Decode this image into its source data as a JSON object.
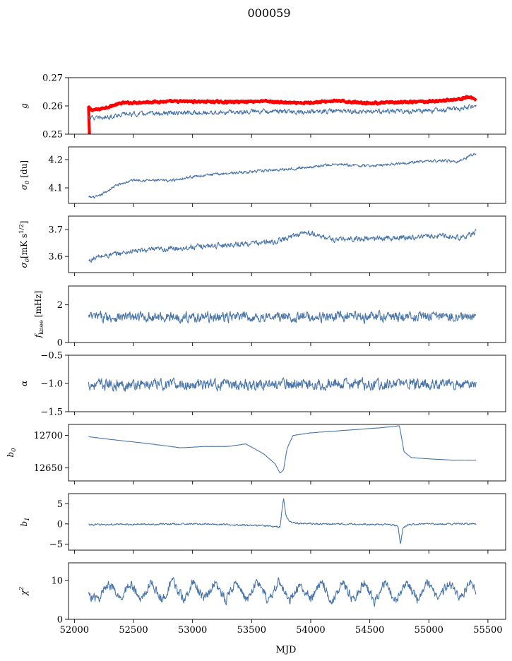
{
  "figure": {
    "title": "000059",
    "xlabel": "MJD"
  },
  "chart_data": {
    "type": "line",
    "xlim": [
      51950,
      55650
    ],
    "xticks": [
      52000,
      52500,
      53000,
      53500,
      54000,
      54500,
      55000,
      55500
    ],
    "x_range": [
      52120,
      55400
    ],
    "panels": [
      {
        "id": "g",
        "ylabel": "g",
        "ylim": [
          0.25,
          0.27
        ],
        "yticks": [
          0.25,
          0.26,
          0.27
        ],
        "ytick_labels": [
          "0.25",
          "0.26",
          "0.27"
        ],
        "series": [
          {
            "color": "#ff0000",
            "width": 4.2,
            "x": [
              52120,
              52140,
              52200,
              52400,
              52700,
              53000,
              53300,
              53600,
              53900,
              54200,
              54500,
              54800,
              55100,
              55250,
              55350,
              55400
            ],
            "values": [
              0.2595,
              0.2586,
              0.2587,
              0.261,
              0.2615,
              0.2616,
              0.2614,
              0.2617,
              0.2609,
              0.2618,
              0.261,
              0.2613,
              0.2618,
              0.2624,
              0.2632,
              0.2621
            ],
            "noise": 0.0003
          },
          {
            "color": "#4a75a8",
            "width": 1.1,
            "x": [
              52120,
              52200,
              52400,
              52700,
              53000,
              53300,
              53600,
              53900,
              54200,
              54500,
              54800,
              55100,
              55300,
              55400
            ],
            "values": [
              0.2562,
              0.2555,
              0.257,
              0.2573,
              0.2575,
              0.2577,
              0.2583,
              0.2578,
              0.2582,
              0.2579,
              0.2581,
              0.2584,
              0.2593,
              0.26
            ],
            "noise": 0.0007
          }
        ]
      },
      {
        "id": "sigma0_du",
        "ylabel": "σ0 [du]",
        "ylim": [
          4.045,
          4.245
        ],
        "yticks": [
          4.1,
          4.2
        ],
        "ytick_labels": [
          "4.1",
          "4.2"
        ],
        "series": [
          {
            "color": "#4a75a8",
            "width": 1.1,
            "x": [
              52120,
              52200,
              52350,
              52500,
              52800,
              53000,
              53300,
              53600,
              53900,
              54200,
              54500,
              54800,
              55100,
              55250,
              55400
            ],
            "values": [
              4.066,
              4.068,
              4.108,
              4.128,
              4.125,
              4.14,
              4.152,
              4.16,
              4.17,
              4.183,
              4.177,
              4.189,
              4.197,
              4.193,
              4.224
            ],
            "noise": 0.004
          }
        ]
      },
      {
        "id": "sigma0_mk",
        "ylabel": "σ0[mK s^1/2]",
        "ylim": [
          3.54,
          3.75
        ],
        "yticks": [
          3.6,
          3.7
        ],
        "ytick_labels": [
          "3.6",
          "3.7"
        ],
        "series": [
          {
            "color": "#4a75a8",
            "width": 1.1,
            "x": [
              52120,
              52200,
              52500,
              52800,
              53100,
              53400,
              53700,
              53950,
              54200,
              54500,
              54800,
              55100,
              55300,
              55400
            ],
            "values": [
              3.583,
              3.598,
              3.62,
              3.628,
              3.638,
              3.646,
              3.654,
              3.69,
              3.662,
              3.667,
              3.67,
              3.678,
              3.67,
              3.692
            ],
            "noise": 0.008
          }
        ]
      },
      {
        "id": "fknee",
        "ylabel": "fknee [mHz]",
        "ylim": [
          0,
          3
        ],
        "yticks": [
          0,
          2
        ],
        "ytick_labels": [
          "0",
          "2"
        ],
        "series": [
          {
            "color": "#4a75a8",
            "width": 1.1,
            "x": [
              52120,
              53000,
              54000,
              55000,
              55400
            ],
            "values": [
              1.35,
              1.35,
              1.35,
              1.38,
              1.35
            ],
            "noise": 0.22
          }
        ]
      },
      {
        "id": "alpha",
        "ylabel": "α",
        "ylim": [
          -1.5,
          -0.5
        ],
        "yticks": [
          -1.5,
          -1.0,
          -0.5
        ],
        "ytick_labels": [
          "−1.5",
          "−1.0",
          "−0.5"
        ],
        "series": [
          {
            "color": "#4a75a8",
            "width": 1.1,
            "x": [
              52120,
              53000,
              54000,
              55000,
              55400
            ],
            "values": [
              -1.02,
              -1.02,
              -1.01,
              -1.01,
              -1.02
            ],
            "noise": 0.08
          }
        ]
      },
      {
        "id": "b0",
        "ylabel": "b0",
        "ylim": [
          12630,
          12717
        ],
        "yticks": [
          12650,
          12700
        ],
        "ytick_labels": [
          "12650",
          "12700"
        ],
        "series": [
          {
            "color": "#4a75a8",
            "width": 1.1,
            "x": [
              52120,
              52300,
              52600,
              52900,
              53100,
              53300,
              53450,
              53500,
              53600,
              53700,
              53740,
              53770,
              53800,
              53850,
              54000,
              54300,
              54600,
              54750,
              54760,
              54790,
              54850,
              55000,
              55200,
              55400
            ],
            "values": [
              12698,
              12694,
              12688,
              12681,
              12683,
              12683,
              12687,
              12682,
              12672,
              12656,
              12642,
              12647,
              12680,
              12700,
              12704,
              12708,
              12712,
              12715,
              12706,
              12675,
              12666,
              12664,
              12662,
              12662
            ],
            "noise": 0.15
          }
        ]
      },
      {
        "id": "b1",
        "ylabel": "b1",
        "ylim": [
          -6.5,
          7.5
        ],
        "yticks": [
          -5,
          0,
          5
        ],
        "ytick_labels": [
          "−5",
          "0",
          "5"
        ],
        "series": [
          {
            "color": "#4a75a8",
            "width": 1.1,
            "x": [
              52120,
              53000,
              53500,
              53700,
              53740,
              53770,
              53790,
              53820,
              53900,
              54200,
              54700,
              54740,
              54760,
              54780,
              54830,
              55000,
              55400
            ],
            "values": [
              -0.2,
              0,
              -0.3,
              -0.6,
              -0.8,
              6.5,
              2.0,
              0.5,
              0.1,
              0,
              -0.2,
              -0.6,
              -5.3,
              -1.0,
              -0.2,
              0,
              0
            ],
            "noise": 0.18
          }
        ]
      },
      {
        "id": "chi2",
        "ylabel": "χ2",
        "ylim": [
          0,
          14.5
        ],
        "yticks": [
          0,
          10
        ],
        "ytick_labels": [
          "0",
          "10"
        ],
        "series": [
          {
            "color": "#4a75a8",
            "width": 1.1,
            "x": [
              52120,
              52200,
              52290,
              52380,
              52470,
              52560,
              52650,
              52740,
              52830,
              52920,
              53010,
              53100,
              53190,
              53280,
              53370,
              53460,
              53550,
              53640,
              53730,
              53820,
              53910,
              54000,
              54090,
              54180,
              54270,
              54360,
              54450,
              54540,
              54630,
              54720,
              54810,
              54900,
              54990,
              55080,
              55170,
              55260,
              55350,
              55400
            ],
            "values": [
              6.2,
              5.0,
              9.6,
              5.0,
              9.4,
              4.8,
              9.6,
              4.8,
              9.8,
              5.0,
              9.6,
              4.8,
              9.6,
              4.9,
              9.8,
              4.9,
              9.8,
              4.7,
              9.6,
              4.8,
              9.4,
              5.0,
              9.8,
              4.4,
              9.9,
              4.6,
              9.6,
              4.8,
              9.6,
              4.6,
              9.9,
              4.8,
              9.4,
              5.0,
              9.8,
              5.4,
              10.0,
              7.5
            ],
            "noise": 1.0
          }
        ]
      }
    ]
  }
}
